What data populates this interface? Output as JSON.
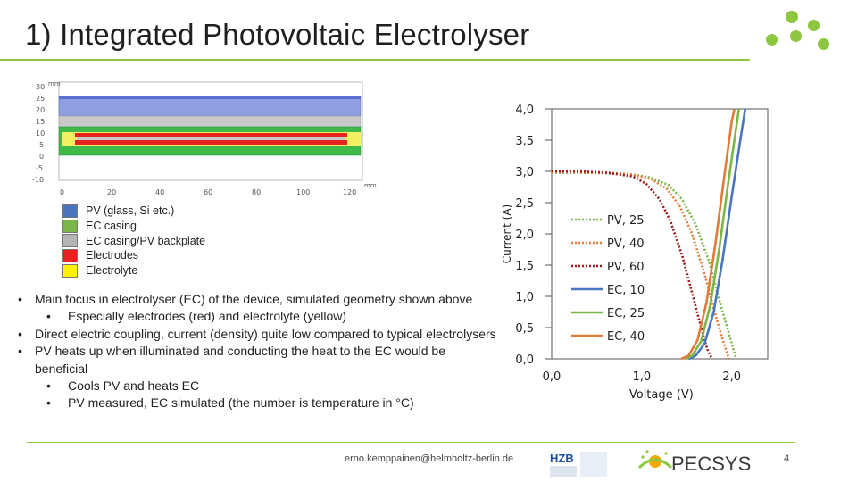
{
  "slide": {
    "title": "1) Integrated Photovoltaic Electrolyser",
    "page_number": "4",
    "footer_email": "erno.kemppainen@helmholtz-berlin.de"
  },
  "geometry": {
    "unit_top": "mm",
    "unit_bottom": "mm",
    "y_ticks": [
      "30",
      "25",
      "20",
      "15",
      "10",
      "5",
      "0",
      "-5",
      "-10"
    ],
    "x_ticks": [
      "0",
      "20",
      "40",
      "60",
      "80",
      "100",
      "120"
    ],
    "legend": [
      {
        "label": "PV (glass, Si etc.)",
        "color": "#4a76bd"
      },
      {
        "label": "EC casing",
        "color": "#7ab648"
      },
      {
        "label": "EC casing/PV backplate",
        "color": "#b4b4b4"
      },
      {
        "label": "Electrodes",
        "color": "#e8231f"
      },
      {
        "label": "Electrolyte",
        "color": "#fff200"
      }
    ]
  },
  "bullets": [
    {
      "level": 1,
      "text": "Main focus in electrolyser (EC) of the device, simulated geometry shown above"
    },
    {
      "level": 2,
      "text": "Especially electrodes (red) and electrolyte (yellow)"
    },
    {
      "level": 1,
      "text": "Direct electric coupling, current (density) quite low compared to typical electrolysers"
    },
    {
      "level": 1,
      "text": "PV heats up when illuminated and conducting the heat to the EC would be beneficial"
    },
    {
      "level": 2,
      "text": "Cools PV and heats EC"
    },
    {
      "level": 2,
      "text": "PV measured, EC simulated (the number is temperature in °C)"
    }
  ],
  "chart_data": {
    "type": "line",
    "xlabel": "Voltage (V)",
    "ylabel": "Current (A)",
    "xlim": [
      0,
      2.4
    ],
    "ylim": [
      0,
      4.0
    ],
    "x_tick_labels": [
      "0,0",
      "1,0",
      "2,0"
    ],
    "x_tick_values": [
      0,
      1.0,
      2.0
    ],
    "y_tick_labels": [
      "0,0",
      "0,5",
      "1,0",
      "1,5",
      "2,0",
      "2,5",
      "3,0",
      "3,5",
      "4,0"
    ],
    "y_tick_values": [
      0,
      0.5,
      1.0,
      1.5,
      2.0,
      2.5,
      3.0,
      3.5,
      4.0
    ],
    "series": [
      {
        "name": "PV, 25",
        "color": "#7ab648",
        "style": "dotted",
        "points": [
          [
            0,
            2.98
          ],
          [
            0.3,
            2.98
          ],
          [
            0.6,
            2.97
          ],
          [
            0.9,
            2.95
          ],
          [
            1.1,
            2.9
          ],
          [
            1.3,
            2.78
          ],
          [
            1.45,
            2.55
          ],
          [
            1.6,
            2.15
          ],
          [
            1.75,
            1.55
          ],
          [
            1.85,
            1.0
          ],
          [
            1.95,
            0.5
          ],
          [
            2.05,
            0.0
          ]
        ]
      },
      {
        "name": "PV, 40",
        "color": "#e07b39",
        "style": "dotted",
        "points": [
          [
            0,
            2.99
          ],
          [
            0.3,
            2.99
          ],
          [
            0.6,
            2.98
          ],
          [
            0.9,
            2.95
          ],
          [
            1.1,
            2.88
          ],
          [
            1.28,
            2.72
          ],
          [
            1.42,
            2.45
          ],
          [
            1.56,
            2.0
          ],
          [
            1.7,
            1.35
          ],
          [
            1.8,
            0.8
          ],
          [
            1.89,
            0.35
          ],
          [
            1.97,
            0.0
          ]
        ]
      },
      {
        "name": "PV, 60",
        "color": "#9e1c1c",
        "style": "dotted",
        "points": [
          [
            0,
            3.0
          ],
          [
            0.3,
            3.0
          ],
          [
            0.6,
            2.98
          ],
          [
            0.9,
            2.92
          ],
          [
            1.05,
            2.8
          ],
          [
            1.2,
            2.55
          ],
          [
            1.32,
            2.2
          ],
          [
            1.45,
            1.65
          ],
          [
            1.57,
            1.0
          ],
          [
            1.66,
            0.5
          ],
          [
            1.73,
            0.15
          ],
          [
            1.78,
            0.0
          ]
        ]
      },
      {
        "name": "EC, 10",
        "color": "#4a76bd",
        "style": "solid",
        "points": [
          [
            1.52,
            0.0
          ],
          [
            1.6,
            0.05
          ],
          [
            1.7,
            0.25
          ],
          [
            1.8,
            0.75
          ],
          [
            1.9,
            1.6
          ],
          [
            2.0,
            2.6
          ],
          [
            2.1,
            3.55
          ],
          [
            2.15,
            4.0
          ]
        ]
      },
      {
        "name": "EC, 25",
        "color": "#7ab648",
        "style": "solid",
        "points": [
          [
            1.48,
            0.0
          ],
          [
            1.56,
            0.05
          ],
          [
            1.66,
            0.28
          ],
          [
            1.76,
            0.85
          ],
          [
            1.86,
            1.75
          ],
          [
            1.96,
            2.8
          ],
          [
            2.06,
            3.8
          ],
          [
            2.08,
            4.0
          ]
        ]
      },
      {
        "name": "EC, 40",
        "color": "#e07b39",
        "style": "solid",
        "points": [
          [
            1.44,
            0.0
          ],
          [
            1.52,
            0.05
          ],
          [
            1.62,
            0.3
          ],
          [
            1.72,
            0.9
          ],
          [
            1.82,
            1.85
          ],
          [
            1.92,
            2.95
          ],
          [
            2.0,
            3.8
          ],
          [
            2.03,
            4.0
          ]
        ]
      }
    ]
  }
}
